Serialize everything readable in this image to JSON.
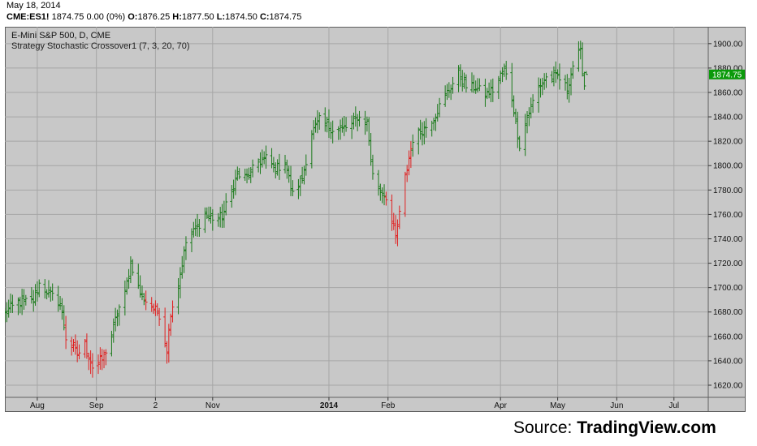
{
  "header": {
    "date": "May 18, 2014",
    "symbol": "CME:ES1!",
    "last": "1874.75",
    "change": "0.00 (0%)",
    "open_label": "O:",
    "open": "1876.25",
    "high_label": "H:",
    "high": "1877.50",
    "low_label": "L:",
    "low": "1874.50",
    "close_label": "C:",
    "close": "1874.75"
  },
  "source": {
    "prefix": "Source: ",
    "brand": "TradingView.com"
  },
  "colors": {
    "up": "#1a7a1a",
    "down": "#e02020",
    "background": "#c8c8c8",
    "grid": "#a6a6a6",
    "last_price": "#0a9a0a"
  },
  "chart_data": {
    "type": "ohlc",
    "title": "E-Mini S&P 500, D, CME",
    "subtitle": "Strategy Stochastic Crossover1 (7, 3, 20, 70)",
    "ylim": [
      1610,
      1910
    ],
    "y_ticks": [
      "1620.00",
      "1640.00",
      "1660.00",
      "1680.00",
      "1700.00",
      "1720.00",
      "1740.00",
      "1760.00",
      "1780.00",
      "1800.00",
      "1820.00",
      "1840.00",
      "1860.00",
      "1880.00",
      "1900.00"
    ],
    "x_ticks": [
      {
        "label": "Aug",
        "date": "2013-08-01",
        "bold": false
      },
      {
        "label": "Sep",
        "date": "2013-09-01",
        "bold": false
      },
      {
        "label": "2",
        "date": "2013-10-02",
        "bold": false
      },
      {
        "label": "Nov",
        "date": "2013-11-01",
        "bold": false
      },
      {
        "label": "2014",
        "date": "2014-01-01",
        "bold": true
      },
      {
        "label": "Feb",
        "date": "2014-02-01",
        "bold": false
      },
      {
        "label": "Apr",
        "date": "2014-04-01",
        "bold": false
      },
      {
        "label": "May",
        "date": "2014-05-01",
        "bold": false
      },
      {
        "label": "Jun",
        "date": "2014-06-01",
        "bold": false
      },
      {
        "label": "Jul",
        "date": "2014-07-01",
        "bold": false
      }
    ],
    "xlim": [
      "2013-07-15",
      "2014-07-19"
    ],
    "last_price_label": "1874.75",
    "last_price": 1874.75,
    "grid": true,
    "series": [
      {
        "name": "bars",
        "anchors": [
          [
            "2013-07-15",
            1679,
            "u"
          ],
          [
            "2013-07-22",
            1688,
            "u"
          ],
          [
            "2013-07-30",
            1689,
            "u"
          ],
          [
            "2013-08-02",
            1703,
            "u"
          ],
          [
            "2013-08-08",
            1694,
            "u"
          ],
          [
            "2013-08-13",
            1687,
            "u"
          ],
          [
            "2013-08-16",
            1659,
            "d"
          ],
          [
            "2013-08-22",
            1645,
            "d"
          ],
          [
            "2013-08-26",
            1653,
            "d"
          ],
          [
            "2013-08-30",
            1635,
            "d"
          ],
          [
            "2013-09-04",
            1641,
            "d"
          ],
          [
            "2013-09-09",
            1660,
            "u"
          ],
          [
            "2013-09-12",
            1680,
            "u"
          ],
          [
            "2013-09-16",
            1695,
            "u"
          ],
          [
            "2013-09-19",
            1721,
            "u"
          ],
          [
            "2013-09-24",
            1695,
            "u"
          ],
          [
            "2013-09-27",
            1689,
            "d"
          ],
          [
            "2013-10-01",
            1683,
            "d"
          ],
          [
            "2013-10-04",
            1678,
            "d"
          ],
          [
            "2013-10-08",
            1649,
            "d"
          ],
          [
            "2013-10-10",
            1680,
            "d"
          ],
          [
            "2013-10-14",
            1703,
            "u"
          ],
          [
            "2013-10-18",
            1737,
            "u"
          ],
          [
            "2013-10-24",
            1750,
            "u"
          ],
          [
            "2013-10-28",
            1760,
            "u"
          ],
          [
            "2013-11-01",
            1757,
            "u"
          ],
          [
            "2013-11-06",
            1758,
            "u"
          ],
          [
            "2013-11-08",
            1767,
            "u"
          ],
          [
            "2013-11-14",
            1792,
            "u"
          ],
          [
            "2013-11-19",
            1790,
            "u"
          ],
          [
            "2013-11-25",
            1803,
            "u"
          ],
          [
            "2013-11-29",
            1806,
            "u"
          ],
          [
            "2013-12-04",
            1797,
            "u"
          ],
          [
            "2013-12-09",
            1803,
            "u"
          ],
          [
            "2013-12-13",
            1776,
            "u"
          ],
          [
            "2013-12-18",
            1790,
            "u"
          ],
          [
            "2013-12-23",
            1827,
            "u"
          ],
          [
            "2013-12-27",
            1837,
            "u"
          ],
          [
            "2014-01-03",
            1830,
            "u"
          ],
          [
            "2014-01-08",
            1830,
            "u"
          ],
          [
            "2014-01-13",
            1833,
            "u"
          ],
          [
            "2014-01-16",
            1840,
            "u"
          ],
          [
            "2014-01-21",
            1835,
            "u"
          ],
          [
            "2014-01-24",
            1792,
            "u"
          ],
          [
            "2014-01-28",
            1779,
            "u"
          ],
          [
            "2014-01-31",
            1775,
            "d"
          ],
          [
            "2014-02-05",
            1740,
            "d"
          ],
          [
            "2014-02-10",
            1790,
            "d"
          ],
          [
            "2014-02-14",
            1822,
            "u"
          ],
          [
            "2014-02-20",
            1830,
            "u"
          ],
          [
            "2014-02-25",
            1840,
            "u"
          ],
          [
            "2014-03-04",
            1860,
            "u"
          ],
          [
            "2014-03-10",
            1875,
            "u"
          ],
          [
            "2014-03-14",
            1865,
            "u"
          ],
          [
            "2014-03-19",
            1864,
            "u"
          ],
          [
            "2014-03-24",
            1858,
            "u"
          ],
          [
            "2014-03-28",
            1862,
            "u"
          ],
          [
            "2014-04-03",
            1880,
            "u"
          ],
          [
            "2014-04-07",
            1855,
            "u"
          ],
          [
            "2014-04-11",
            1817,
            "u"
          ],
          [
            "2014-04-15",
            1840,
            "u"
          ],
          [
            "2014-04-21",
            1865,
            "u"
          ],
          [
            "2014-04-25",
            1872,
            "u"
          ],
          [
            "2014-05-01",
            1873,
            "u"
          ],
          [
            "2014-05-06",
            1863,
            "u"
          ],
          [
            "2014-05-10",
            1889,
            "u"
          ],
          [
            "2014-05-13",
            1892,
            "u"
          ],
          [
            "2014-05-15",
            1866,
            "u"
          ],
          [
            "2014-05-16",
            1874.75,
            "u"
          ]
        ]
      }
    ]
  }
}
